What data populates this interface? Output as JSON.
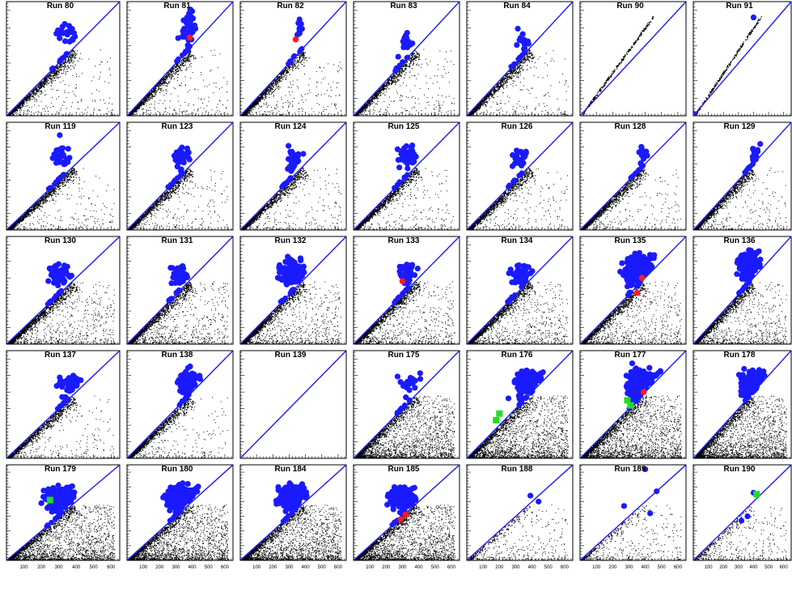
{
  "chart_data": {
    "type": "scatter",
    "layout": "grid",
    "rows": 5,
    "cols": 7,
    "x_ticks": [
      "100",
      "200",
      "300",
      "400",
      "500",
      "600"
    ],
    "xlim": [
      0,
      650
    ],
    "ylim": [
      0,
      650
    ],
    "colors": {
      "background_points": "#000000",
      "selected_points": "#1a1aff",
      "diagonal_line": "#1a1aff",
      "red_marker": "#ff1a1a",
      "green_marker": "#22dd22",
      "frame": "#000000"
    },
    "panels": [
      {
        "title": "Run 80",
        "density": "low",
        "cluster": {
          "center": [
            340,
            470
          ],
          "count": 22,
          "spread": [
            55,
            60
          ]
        },
        "red": [],
        "green": []
      },
      {
        "title": "Run 81",
        "density": "low",
        "cluster": {
          "center": [
            380,
            510
          ],
          "count": 45,
          "spread": [
            40,
            90
          ]
        },
        "red": [
          [
            385,
            445
          ]
        ],
        "green": []
      },
      {
        "title": "Run 82",
        "density": "low",
        "cluster": {
          "center": [
            370,
            500
          ],
          "count": 10,
          "spread": [
            25,
            45
          ]
        },
        "red": [
          [
            340,
            435
          ]
        ],
        "green": []
      },
      {
        "title": "Run 83",
        "density": "low",
        "cluster": {
          "center": [
            330,
            430
          ],
          "count": 14,
          "spread": [
            50,
            70
          ]
        },
        "red": [],
        "green": []
      },
      {
        "title": "Run 84",
        "density": "low",
        "cluster": {
          "center": [
            350,
            410
          ],
          "count": 16,
          "spread": [
            50,
            60
          ]
        },
        "red": [],
        "green": []
      },
      {
        "title": "Run 90",
        "density": "strip",
        "cluster": {
          "center": [
            0,
            0
          ],
          "count": 0,
          "spread": [
            0,
            0
          ]
        },
        "red": [],
        "green": []
      },
      {
        "title": "Run 91",
        "density": "strip",
        "cluster": {
          "center": [
            0,
            0
          ],
          "count": 1,
          "spread": [
            0,
            0
          ]
        },
        "single": [
          400,
          560
        ],
        "red": [],
        "green": []
      },
      {
        "title": "Run 119",
        "density": "low",
        "cluster": {
          "center": [
            320,
            440
          ],
          "count": 28,
          "spread": [
            50,
            70
          ]
        },
        "red": [],
        "green": []
      },
      {
        "title": "Run 123",
        "density": "low",
        "cluster": {
          "center": [
            330,
            430
          ],
          "count": 30,
          "spread": [
            55,
            70
          ]
        },
        "red": [],
        "green": []
      },
      {
        "title": "Run 124",
        "density": "low",
        "cluster": {
          "center": [
            330,
            420
          ],
          "count": 32,
          "spread": [
            55,
            70
          ]
        },
        "red": [],
        "green": []
      },
      {
        "title": "Run 125",
        "density": "low",
        "cluster": {
          "center": [
            330,
            440
          ],
          "count": 36,
          "spread": [
            60,
            75
          ]
        },
        "red": [],
        "green": []
      },
      {
        "title": "Run 126",
        "density": "low",
        "cluster": {
          "center": [
            330,
            440
          ],
          "count": 22,
          "spread": [
            45,
            60
          ]
        },
        "red": [],
        "green": []
      },
      {
        "title": "Run 128",
        "density": "low",
        "cluster": {
          "center": [
            380,
            470
          ],
          "count": 12,
          "spread": [
            30,
            45
          ]
        },
        "red": [],
        "green": []
      },
      {
        "title": "Run 129",
        "density": "low",
        "cluster": {
          "center": [
            420,
            420
          ],
          "count": 16,
          "spread": [
            35,
            60
          ]
        },
        "red": [],
        "green": []
      },
      {
        "title": "Run 130",
        "density": "med",
        "cluster": {
          "center": [
            310,
            410
          ],
          "count": 45,
          "spread": [
            55,
            65
          ]
        },
        "red": [],
        "green": []
      },
      {
        "title": "Run 131",
        "density": "med",
        "cluster": {
          "center": [
            320,
            420
          ],
          "count": 55,
          "spread": [
            55,
            70
          ]
        },
        "red": [],
        "green": []
      },
      {
        "title": "Run 132",
        "density": "med",
        "cluster": {
          "center": [
            320,
            430
          ],
          "count": 150,
          "spread": [
            75,
            65
          ]
        },
        "red": [],
        "green": []
      },
      {
        "title": "Run 133",
        "density": "med",
        "cluster": {
          "center": [
            330,
            430
          ],
          "count": 35,
          "spread": [
            55,
            60
          ]
        },
        "red": [
          [
            300,
            380
          ]
        ],
        "green": []
      },
      {
        "title": "Run 134",
        "density": "med",
        "cluster": {
          "center": [
            330,
            420
          ],
          "count": 60,
          "spread": [
            60,
            60
          ]
        },
        "red": [],
        "green": []
      },
      {
        "title": "Run 135",
        "density": "med",
        "cluster": {
          "center": [
            370,
            440
          ],
          "count": 260,
          "spread": [
            85,
            90
          ]
        },
        "red": [
          [
            380,
            400
          ],
          [
            350,
            310
          ]
        ],
        "green": []
      },
      {
        "title": "Run 136",
        "density": "med",
        "cluster": {
          "center": [
            380,
            460
          ],
          "count": 150,
          "spread": [
            70,
            90
          ]
        },
        "red": [],
        "green": []
      },
      {
        "title": "Run 137",
        "density": "low",
        "cluster": {
          "center": [
            360,
            450
          ],
          "count": 55,
          "spread": [
            70,
            75
          ]
        },
        "red": [],
        "green": []
      },
      {
        "title": "Run 138",
        "density": "low",
        "cluster": {
          "center": [
            380,
            450
          ],
          "count": 70,
          "spread": [
            55,
            80
          ]
        },
        "red": [],
        "green": []
      },
      {
        "title": "Run 139",
        "density": "none",
        "cluster": {
          "center": [
            0,
            0
          ],
          "count": 0,
          "spread": [
            0,
            0
          ]
        },
        "red": [],
        "green": []
      },
      {
        "title": "Run 175",
        "density": "high",
        "cluster": {
          "center": [
            340,
            450
          ],
          "count": 20,
          "spread": [
            55,
            60
          ]
        },
        "red": [],
        "green": []
      },
      {
        "title": "Run 176",
        "density": "high",
        "cluster": {
          "center": [
            400,
            430
          ],
          "count": 230,
          "spread": [
            85,
            80
          ]
        },
        "red": [],
        "green": [
          [
            200,
            270
          ],
          [
            180,
            230
          ]
        ]
      },
      {
        "title": "Run 177",
        "density": "high",
        "cluster": {
          "center": [
            380,
            440
          ],
          "count": 230,
          "spread": [
            90,
            85
          ]
        },
        "red": [
          [
            390,
            400
          ]
        ],
        "green": [
          [
            290,
            350
          ],
          [
            310,
            320
          ]
        ]
      },
      {
        "title": "Run 178",
        "density": "high",
        "cluster": {
          "center": [
            420,
            420
          ],
          "count": 200,
          "spread": [
            80,
            85
          ]
        },
        "red": [],
        "green": []
      },
      {
        "title": "Run 179",
        "density": "high",
        "cluster": {
          "center": [
            310,
            420
          ],
          "count": 200,
          "spread": [
            85,
            75
          ]
        },
        "red": [],
        "green": [
          [
            250,
            410
          ]
        ]
      },
      {
        "title": "Run 180",
        "density": "high",
        "cluster": {
          "center": [
            330,
            420
          ],
          "count": 220,
          "spread": [
            85,
            80
          ]
        },
        "red": [],
        "green": []
      },
      {
        "title": "Run 184",
        "density": "high",
        "cluster": {
          "center": [
            330,
            420
          ],
          "count": 210,
          "spread": [
            85,
            80
          ]
        },
        "red": [],
        "green": []
      },
      {
        "title": "Run 185",
        "density": "high",
        "cluster": {
          "center": [
            310,
            410
          ],
          "count": 180,
          "spread": [
            80,
            75
          ]
        },
        "red": [
          [
            320,
            310
          ],
          [
            290,
            280
          ]
        ],
        "green": []
      },
      {
        "title": "Run 188",
        "density": "sparse",
        "cluster": {
          "center": [
            0,
            0
          ],
          "count": 0,
          "spread": [
            0,
            0
          ]
        },
        "extra": [
          [
            390,
            440
          ],
          [
            440,
            400
          ]
        ],
        "red": [],
        "green": []
      },
      {
        "title": "Run 189",
        "density": "sparse",
        "cluster": {
          "center": [
            0,
            0
          ],
          "count": 0,
          "spread": [
            0,
            0
          ]
        },
        "extra": [
          [
            400,
            620
          ],
          [
            470,
            470
          ],
          [
            270,
            370
          ],
          [
            430,
            320
          ]
        ],
        "red": [],
        "green": []
      },
      {
        "title": "Run 190",
        "density": "sparse",
        "cluster": {
          "center": [
            0,
            0
          ],
          "count": 0,
          "spread": [
            0,
            0
          ]
        },
        "extra": [
          [
            360,
            300
          ],
          [
            400,
            460
          ],
          [
            320,
            270
          ]
        ],
        "red": [],
        "green": [
          [
            420,
            450
          ]
        ]
      }
    ]
  }
}
